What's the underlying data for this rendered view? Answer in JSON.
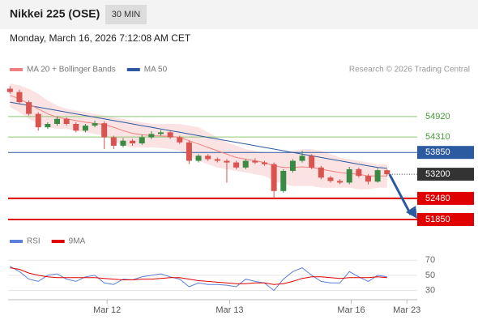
{
  "chart_data": {
    "type": "candlestick",
    "title": "Nikkei 225 (OSE)",
    "interval": "30 MIN",
    "timestamp": "Monday, March 16, 2026 7:12:08 AM CET",
    "copyright": "Research © 2026 Trading Central",
    "xlim": [
      -0.2,
      43.2
    ],
    "xticks": [
      {
        "value": 10.3,
        "label": "Mar 12"
      },
      {
        "value": 23.3,
        "label": "Mar 13"
      },
      {
        "value": 36.2,
        "label": "Mar 16"
      },
      {
        "value": 42.1,
        "label": "Mar 23"
      }
    ],
    "ylim": [
      51560,
      55980
    ],
    "up_color": "#3a8a44",
    "down_color": "#d9534f",
    "candles": {
      "open": [
        55750,
        55650,
        55350,
        55000,
        54600,
        54700,
        54850,
        54700,
        54500,
        54650,
        54720,
        54300,
        54050,
        54200,
        54120,
        54300,
        54400,
        54450,
        54300,
        54150,
        53600,
        53750,
        53650,
        53600,
        53550,
        53400,
        53600,
        53550,
        53500,
        52700,
        53300,
        53600,
        53750,
        53400,
        53100,
        53000,
        52950,
        53350,
        53150,
        52980,
        53320
      ],
      "high": [
        55830,
        55720,
        55400,
        55050,
        54750,
        54920,
        54900,
        54750,
        54700,
        54800,
        54780,
        54350,
        54280,
        54250,
        54380,
        54480,
        54520,
        54500,
        54350,
        54200,
        53800,
        53800,
        53700,
        53650,
        53600,
        53650,
        53680,
        53600,
        53550,
        53350,
        53650,
        53900,
        53800,
        53450,
        53150,
        53050,
        53420,
        53400,
        53200,
        53380,
        53350
      ],
      "low": [
        55600,
        55300,
        54950,
        54500,
        54550,
        54650,
        54650,
        54450,
        54450,
        54600,
        53950,
        53950,
        54000,
        54050,
        54080,
        54250,
        54350,
        54250,
        54100,
        53500,
        53550,
        53600,
        53550,
        52950,
        53350,
        53350,
        53500,
        53450,
        52480,
        52650,
        53250,
        53550,
        53350,
        53050,
        52950,
        52900,
        52900,
        53100,
        52900,
        52950,
        53150
      ],
      "close": [
        55650,
        55350,
        55000,
        54600,
        54700,
        54850,
        54700,
        54500,
        54650,
        54720,
        54300,
        54050,
        54200,
        54120,
        54300,
        54400,
        54450,
        54300,
        54150,
        53600,
        53750,
        53650,
        53600,
        53550,
        53400,
        53600,
        53550,
        53500,
        52700,
        53300,
        53600,
        53750,
        53400,
        53100,
        53000,
        52950,
        53350,
        53150,
        52980,
        53320,
        53200
      ]
    },
    "bands": {
      "name": "MA 20 + Bollinger Bands",
      "color": "#f08080",
      "fill": "#fbe3e3",
      "values": [
        55550,
        55450,
        55300,
        55150,
        55000,
        54900,
        54850,
        54800,
        54750,
        54720,
        54680,
        54600,
        54500,
        54420,
        54380,
        54350,
        54340,
        54330,
        54300,
        54200,
        54100,
        54000,
        53900,
        53800,
        53700,
        53650,
        53600,
        53550,
        53450,
        53400,
        53400,
        53420,
        53400,
        53350,
        53300,
        53250,
        53220,
        53200,
        53150,
        53150,
        53150
      ],
      "upper": [
        55900,
        55850,
        55750,
        55600,
        55400,
        55250,
        55150,
        55100,
        55050,
        55000,
        54950,
        54900,
        54850,
        54800,
        54750,
        54700,
        54700,
        54700,
        54700,
        54650,
        54600,
        54450,
        54300,
        54150,
        54050,
        53950,
        53900,
        53850,
        53850,
        53850,
        53900,
        53950,
        53950,
        53900,
        53800,
        53700,
        53650,
        53600,
        53550,
        53500,
        53500
      ],
      "lower": [
        55200,
        55050,
        54850,
        54700,
        54600,
        54550,
        54550,
        54500,
        54450,
        54400,
        54350,
        54200,
        54050,
        54000,
        54000,
        54000,
        53980,
        53950,
        53900,
        53750,
        53600,
        53500,
        53400,
        53350,
        53300,
        53250,
        53200,
        53150,
        53000,
        52900,
        52850,
        52850,
        52850,
        52800,
        52800,
        52800,
        52800,
        52750,
        52750,
        52800,
        52800
      ]
    },
    "ma50": {
      "name": "MA 50",
      "color": "#2c5aa0",
      "values": [
        55350,
        55300,
        55250,
        55200,
        55150,
        55100,
        55050,
        55000,
        54950,
        54900,
        54850,
        54800,
        54750,
        54700,
        54650,
        54600,
        54550,
        54500,
        54450,
        54400,
        54350,
        54300,
        54250,
        54200,
        54150,
        54100,
        54050,
        54000,
        53950,
        53900,
        53850,
        53800,
        53750,
        53700,
        53650,
        53600,
        53550,
        53500,
        53450,
        53400,
        53380
      ]
    },
    "levels": [
      {
        "value": 54920,
        "color": "#8cc870",
        "style": "text"
      },
      {
        "value": 54310,
        "color": "#8cc870",
        "style": "text"
      },
      {
        "value": 53850,
        "color": "#2c5aa0",
        "style": "box"
      },
      {
        "value": 53200,
        "color": "#333333",
        "style": "dotted"
      },
      {
        "value": 52480,
        "color": "#e00000",
        "style": "box"
      },
      {
        "value": 51850,
        "color": "#e00000",
        "style": "box"
      }
    ],
    "rsi": {
      "ylim": [
        20,
        82
      ],
      "yticks": [
        30,
        50,
        70
      ],
      "grid": true,
      "series": [
        {
          "name": "RSI",
          "color": "#5b7fdb",
          "values": [
            62,
            55,
            45,
            42,
            50,
            52,
            45,
            42,
            48,
            50,
            40,
            38,
            45,
            44,
            48,
            50,
            52,
            48,
            45,
            35,
            40,
            38,
            38,
            37,
            35,
            45,
            42,
            40,
            30,
            45,
            55,
            60,
            50,
            42,
            40,
            40,
            55,
            48,
            42,
            50,
            48
          ]
        },
        {
          "name": "9MA",
          "color": "#e00000",
          "values": [
            60,
            58,
            53,
            50,
            48,
            47,
            47,
            47,
            47,
            47,
            46,
            45,
            44,
            44,
            45,
            45,
            46,
            47,
            47,
            45,
            43,
            42,
            41,
            40,
            39,
            39,
            40,
            40,
            38,
            39,
            42,
            46,
            48,
            48,
            47,
            46,
            47,
            47,
            47,
            48,
            47
          ]
        }
      ]
    }
  }
}
